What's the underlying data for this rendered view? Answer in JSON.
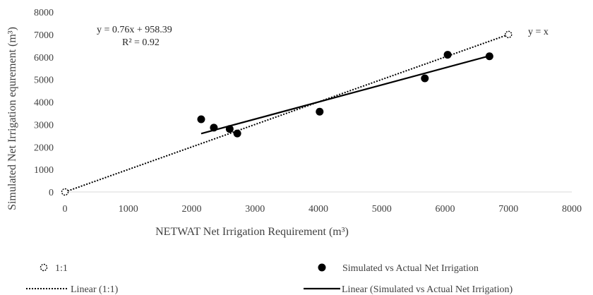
{
  "chart_data": {
    "type": "scatter",
    "xlabel": "NETWAT  Net Irrigation Requirement (m³)",
    "ylabel": "Simulated Net Irrigation equrement (m³)",
    "xlim": [
      0,
      8000
    ],
    "ylim": [
      0,
      8000
    ],
    "xticks": [
      "0",
      "1000",
      "2000",
      "3000",
      "4000",
      "5000",
      "6000",
      "7000",
      "8000"
    ],
    "yticks": [
      "0",
      "1000",
      "2000",
      "3000",
      "4000",
      "5000",
      "6000",
      "7000",
      "8000"
    ],
    "grid": false,
    "legend_position": "bottom",
    "series": [
      {
        "name": "1:1",
        "kind": "points",
        "marker": "open-dashed-circle",
        "color": "#000000",
        "points": [
          [
            0,
            0
          ],
          [
            7000,
            7000
          ]
        ]
      },
      {
        "name": "Simulated vs Actual Net Irrigation",
        "kind": "points",
        "marker": "filled-circle",
        "color": "#000000",
        "points": [
          [
            2150,
            3230
          ],
          [
            2350,
            2860
          ],
          [
            2600,
            2800
          ],
          [
            2720,
            2600
          ],
          [
            4020,
            3570
          ],
          [
            5680,
            5050
          ],
          [
            6040,
            6100
          ],
          [
            6700,
            6030
          ]
        ]
      },
      {
        "name": "Linear (1:1)",
        "kind": "trendline",
        "style": "dotted",
        "color": "#000000",
        "slope": 1,
        "intercept": 0,
        "x_range": [
          0,
          7000
        ]
      },
      {
        "name": "Linear (Simulated vs Actual Net Irrigation)",
        "kind": "trendline",
        "style": "solid",
        "color": "#000000",
        "slope": 0.76,
        "intercept": 958.39,
        "x_range": [
          2150,
          6700
        ]
      }
    ],
    "annotations": {
      "equation": "y = 0.76x + 958.39",
      "r_squared": "R² = 0.92",
      "identity_label": "y = x"
    }
  }
}
